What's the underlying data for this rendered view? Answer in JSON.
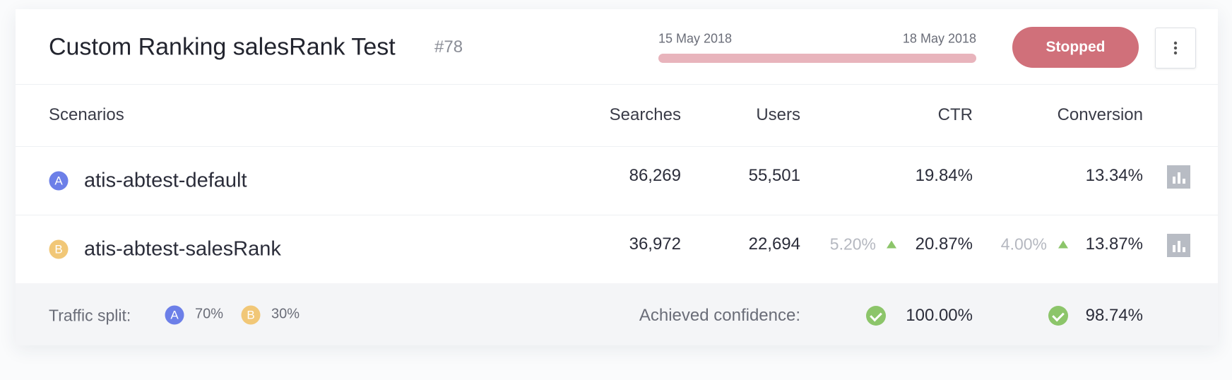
{
  "header": {
    "title": "Custom Ranking salesRank Test",
    "id": "#78",
    "start_date": "15 May 2018",
    "end_date": "18 May 2018",
    "status": "Stopped"
  },
  "table": {
    "columns": [
      "Scenarios",
      "Searches",
      "Users",
      "CTR",
      "Conversion"
    ],
    "rows": [
      {
        "badge": "A",
        "name": "atis-abtest-default",
        "searches": "86,269",
        "users": "55,501",
        "ctr": "19.84%",
        "conversion": "13.34%"
      },
      {
        "badge": "B",
        "name": "atis-abtest-salesRank",
        "searches": "36,972",
        "users": "22,694",
        "ctr_change": "5.20%",
        "ctr": "20.87%",
        "conversion_change": "4.00%",
        "conversion": "13.87%"
      }
    ]
  },
  "footer": {
    "traffic_split_label": "Traffic split:",
    "splits": [
      {
        "badge": "A",
        "value": "70%"
      },
      {
        "badge": "B",
        "value": "30%"
      }
    ],
    "confidence_label": "Achieved confidence:",
    "confidences": [
      "100.00%",
      "98.74%"
    ]
  }
}
